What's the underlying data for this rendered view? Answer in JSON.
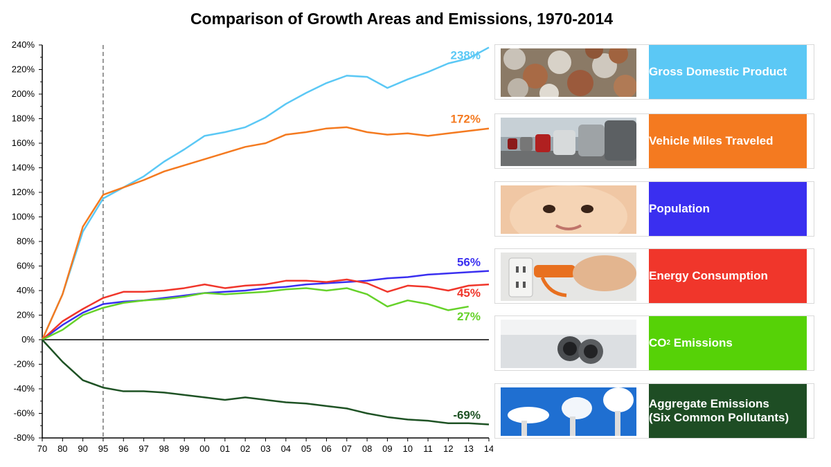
{
  "chart_data": {
    "type": "line",
    "title": "Comparison of Growth Areas and Emissions, 1970-2014",
    "x": [
      "70",
      "80",
      "90",
      "95",
      "96",
      "97",
      "98",
      "99",
      "00",
      "01",
      "02",
      "03",
      "04",
      "05",
      "06",
      "07",
      "08",
      "09",
      "10",
      "11",
      "12",
      "13",
      "14"
    ],
    "ylim": [
      -80,
      240
    ],
    "yticks": [
      -80,
      -60,
      -40,
      -20,
      0,
      20,
      40,
      60,
      80,
      100,
      120,
      140,
      160,
      180,
      200,
      220,
      240
    ],
    "ytick_suffix": "%",
    "grid": false,
    "reference_line": {
      "x": "95",
      "style": "dashed"
    },
    "legend_position": "right",
    "series": [
      {
        "name": "Gross Domestic Product",
        "color": "#5bc8f5",
        "end_label": "238%",
        "values": [
          0,
          37,
          88,
          115,
          124,
          133,
          145,
          155,
          166,
          169,
          173,
          181,
          192,
          201,
          209,
          215,
          214,
          205,
          212,
          218,
          225,
          229,
          238
        ]
      },
      {
        "name": "Vehicle Miles Traveled",
        "color": "#f47a20",
        "end_label": "172%",
        "values": [
          0,
          37,
          92,
          118,
          124,
          130,
          137,
          142,
          147,
          152,
          157,
          160,
          167,
          169,
          172,
          173,
          169,
          167,
          168,
          166,
          168,
          170,
          172
        ]
      },
      {
        "name": "Population",
        "color": "#3a2ff0",
        "end_label": "56%",
        "values": [
          0,
          12,
          22,
          29,
          31,
          32,
          34,
          36,
          38,
          39,
          40,
          42,
          43,
          45,
          46,
          47,
          48,
          50,
          51,
          53,
          54,
          55,
          56
        ]
      },
      {
        "name": "Energy Consumption",
        "color": "#f0362b",
        "end_label": "45%",
        "values": [
          0,
          15,
          25,
          34,
          39,
          39,
          40,
          42,
          45,
          42,
          44,
          45,
          48,
          48,
          47,
          49,
          46,
          39,
          44,
          43,
          40,
          44,
          45
        ]
      },
      {
        "name": "CO2 Emissions",
        "color": "#66d22a",
        "end_label": "27%",
        "values": [
          0,
          8,
          20,
          26,
          30,
          32,
          33,
          35,
          38,
          37,
          38,
          39,
          41,
          42,
          40,
          42,
          37,
          27,
          32,
          29,
          24,
          27,
          null
        ]
      },
      {
        "name": "Aggregate Emissions (Six Common Pollutants)",
        "color": "#1e5224",
        "end_label": "-69%",
        "values": [
          0,
          -18,
          -33,
          -39,
          -42,
          -42,
          -43,
          -45,
          -47,
          -49,
          -47,
          -49,
          -51,
          -52,
          -54,
          -56,
          -60,
          -63,
          -65,
          -66,
          -68,
          -68,
          -69
        ]
      }
    ]
  },
  "legend": [
    {
      "label": "Gross Domestic Product",
      "bg": "#5bc8f5",
      "image": "coins-photo"
    },
    {
      "label": "Vehicle Miles Traveled",
      "bg": "#f47a20",
      "image": "traffic-photo"
    },
    {
      "label": "Population",
      "bg": "#3a2ff0",
      "image": "baby-photo"
    },
    {
      "label_main": "CO",
      "label_sub": "2",
      "label_rest": " Emissions",
      "label": "Energy Consumption",
      "bg": "#f0362b",
      "image": "plug-photo"
    },
    {
      "label_main": "CO",
      "label_sub": "2",
      "label_rest": " Emissions",
      "bg": "#56d207",
      "image": "exhaust-photo"
    },
    {
      "label_line1": "Aggregate Emissions",
      "label_line2": "(Six Common Pollutants)",
      "bg": "#1e4d24",
      "image": "smokestacks-photo"
    }
  ]
}
